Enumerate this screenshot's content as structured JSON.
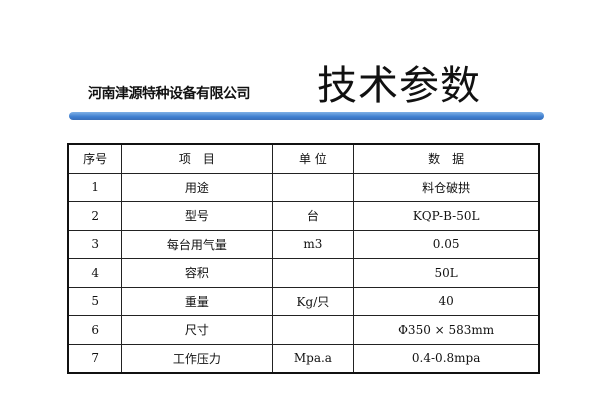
{
  "header": {
    "company": "河南津源特种设备有限公司",
    "title": "技术参数",
    "bar_color": "#4a86d4"
  },
  "table": {
    "columns": [
      "序号",
      "项　目",
      "单 位",
      "数　据"
    ],
    "rows": [
      [
        "1",
        "用途",
        "",
        "料仓破拱"
      ],
      [
        "2",
        "型号",
        "台",
        "KQP-B-50L"
      ],
      [
        "3",
        "每台用气量",
        "m3",
        "0.05"
      ],
      [
        "4",
        "容积",
        "",
        "50L"
      ],
      [
        "5",
        "重量",
        "Kg/只",
        "40"
      ],
      [
        "6",
        "尺寸",
        "",
        "Φ350 × 583mm"
      ],
      [
        "7",
        "工作压力",
        "Mpa.a",
        "0.4-0.8mpa"
      ]
    ]
  }
}
